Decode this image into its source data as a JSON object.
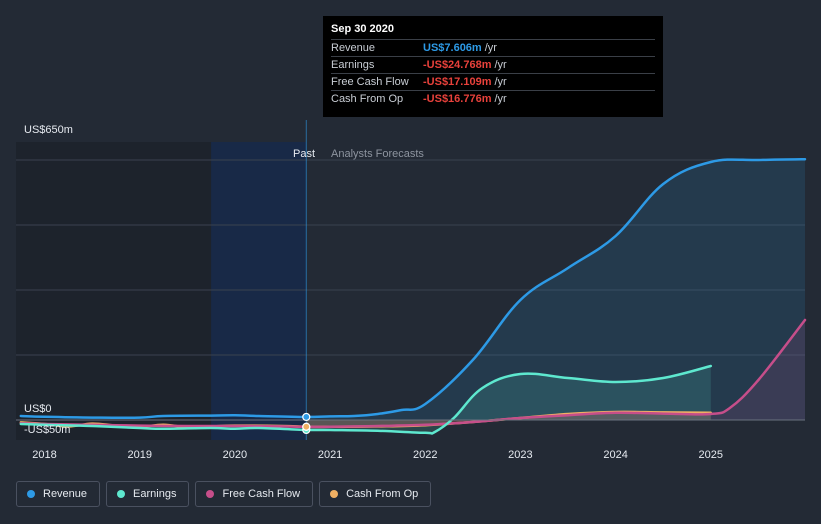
{
  "tooltip": {
    "date": "Sep 30 2020",
    "rows": [
      {
        "label": "Revenue",
        "value": "US$7.606m",
        "unit": "/yr",
        "color": "#2d9ae6"
      },
      {
        "label": "Earnings",
        "value": "-US$24.768m",
        "unit": "/yr",
        "color": "#e8413b"
      },
      {
        "label": "Free Cash Flow",
        "value": "-US$17.109m",
        "unit": "/yr",
        "color": "#e8413b"
      },
      {
        "label": "Cash From Op",
        "value": "-US$16.776m",
        "unit": "/yr",
        "color": "#e8413b"
      }
    ]
  },
  "regions": {
    "past_label": "Past",
    "forecast_label": "Analysts Forecasts"
  },
  "legend": [
    {
      "label": "Revenue",
      "color": "#2d9ae6"
    },
    {
      "label": "Earnings",
      "color": "#5ee8cf"
    },
    {
      "label": "Free Cash Flow",
      "color": "#c64e8a"
    },
    {
      "label": "Cash From Op",
      "color": "#f0b063"
    }
  ],
  "chart_data": {
    "type": "area",
    "title": "",
    "xlabel": "",
    "ylabel": "",
    "y_tick_labels": [
      "US$650m",
      "US$0",
      "-US$50m"
    ],
    "x_tick_labels": [
      "2018",
      "2019",
      "2020",
      "2021",
      "2022",
      "2023",
      "2024",
      "2025"
    ],
    "xlim": [
      2017.7,
      2025.99
    ],
    "ylim": [
      -62,
      650
    ],
    "past_end": 2020.75,
    "highlight_start": 2019.75,
    "grid": true,
    "legend_position": "bottom",
    "series": [
      {
        "name": "Revenue",
        "color": "#2d9ae6",
        "x": [
          2017.75,
          2018.0,
          2018.5,
          2019.0,
          2019.25,
          2019.75,
          2020.0,
          2020.25,
          2020.75,
          2021.0,
          2021.25,
          2021.5,
          2021.75,
          2022.0,
          2022.5,
          2023.0,
          2023.5,
          2024.0,
          2024.5,
          2025.0,
          2025.5,
          2025.99
        ],
        "y": [
          10,
          8,
          6,
          6,
          10,
          11,
          12,
          10,
          7.6,
          9,
          10,
          15,
          25,
          40,
          150,
          300,
          380,
          460,
          590,
          645,
          650,
          652
        ]
      },
      {
        "name": "Earnings",
        "color": "#5ee8cf",
        "x": [
          2017.75,
          2018.0,
          2018.5,
          2019.0,
          2019.25,
          2019.75,
          2020.0,
          2020.25,
          2020.75,
          2021.0,
          2021.5,
          2022.0,
          2022.1,
          2022.3,
          2022.6,
          2023.0,
          2023.5,
          2024.0,
          2024.5,
          2025.0
        ],
        "y": [
          -10,
          -12,
          -15,
          -20,
          -22,
          -20,
          -22,
          -20,
          -24.8,
          -25,
          -27,
          -32,
          -30,
          5,
          80,
          115,
          105,
          95,
          105,
          135
        ]
      },
      {
        "name": "Free Cash Flow",
        "color": "#c64e8a",
        "x": [
          2017.75,
          2018.0,
          2018.5,
          2019.0,
          2019.5,
          2020.0,
          2020.5,
          2020.75,
          2021.0,
          2021.5,
          2022.0,
          2022.5,
          2023.0,
          2023.5,
          2024.0,
          2024.5,
          2025.0,
          2025.2,
          2025.5,
          2025.99
        ],
        "y": [
          -8,
          -10,
          -12,
          -14,
          -15,
          -15,
          -16,
          -17.1,
          -17,
          -15,
          -12,
          -5,
          5,
          12,
          18,
          16,
          15,
          30,
          100,
          250
        ]
      },
      {
        "name": "Cash From Op",
        "color": "#f0b063",
        "x": [
          2017.75,
          2018.0,
          2018.25,
          2018.5,
          2018.75,
          2019.0,
          2019.25,
          2019.5,
          2019.75,
          2020.0,
          2020.5,
          2020.75,
          2021.0,
          2021.5,
          2022.0,
          2022.5,
          2023.0,
          2023.5,
          2024.0,
          2024.5,
          2025.0
        ],
        "y": [
          -6,
          -10,
          -16,
          -9,
          -14,
          -17,
          -12,
          -18,
          -16,
          -14,
          -15,
          -16.8,
          -17,
          -16,
          -13,
          -5,
          5,
          15,
          20,
          19,
          18
        ]
      }
    ]
  }
}
